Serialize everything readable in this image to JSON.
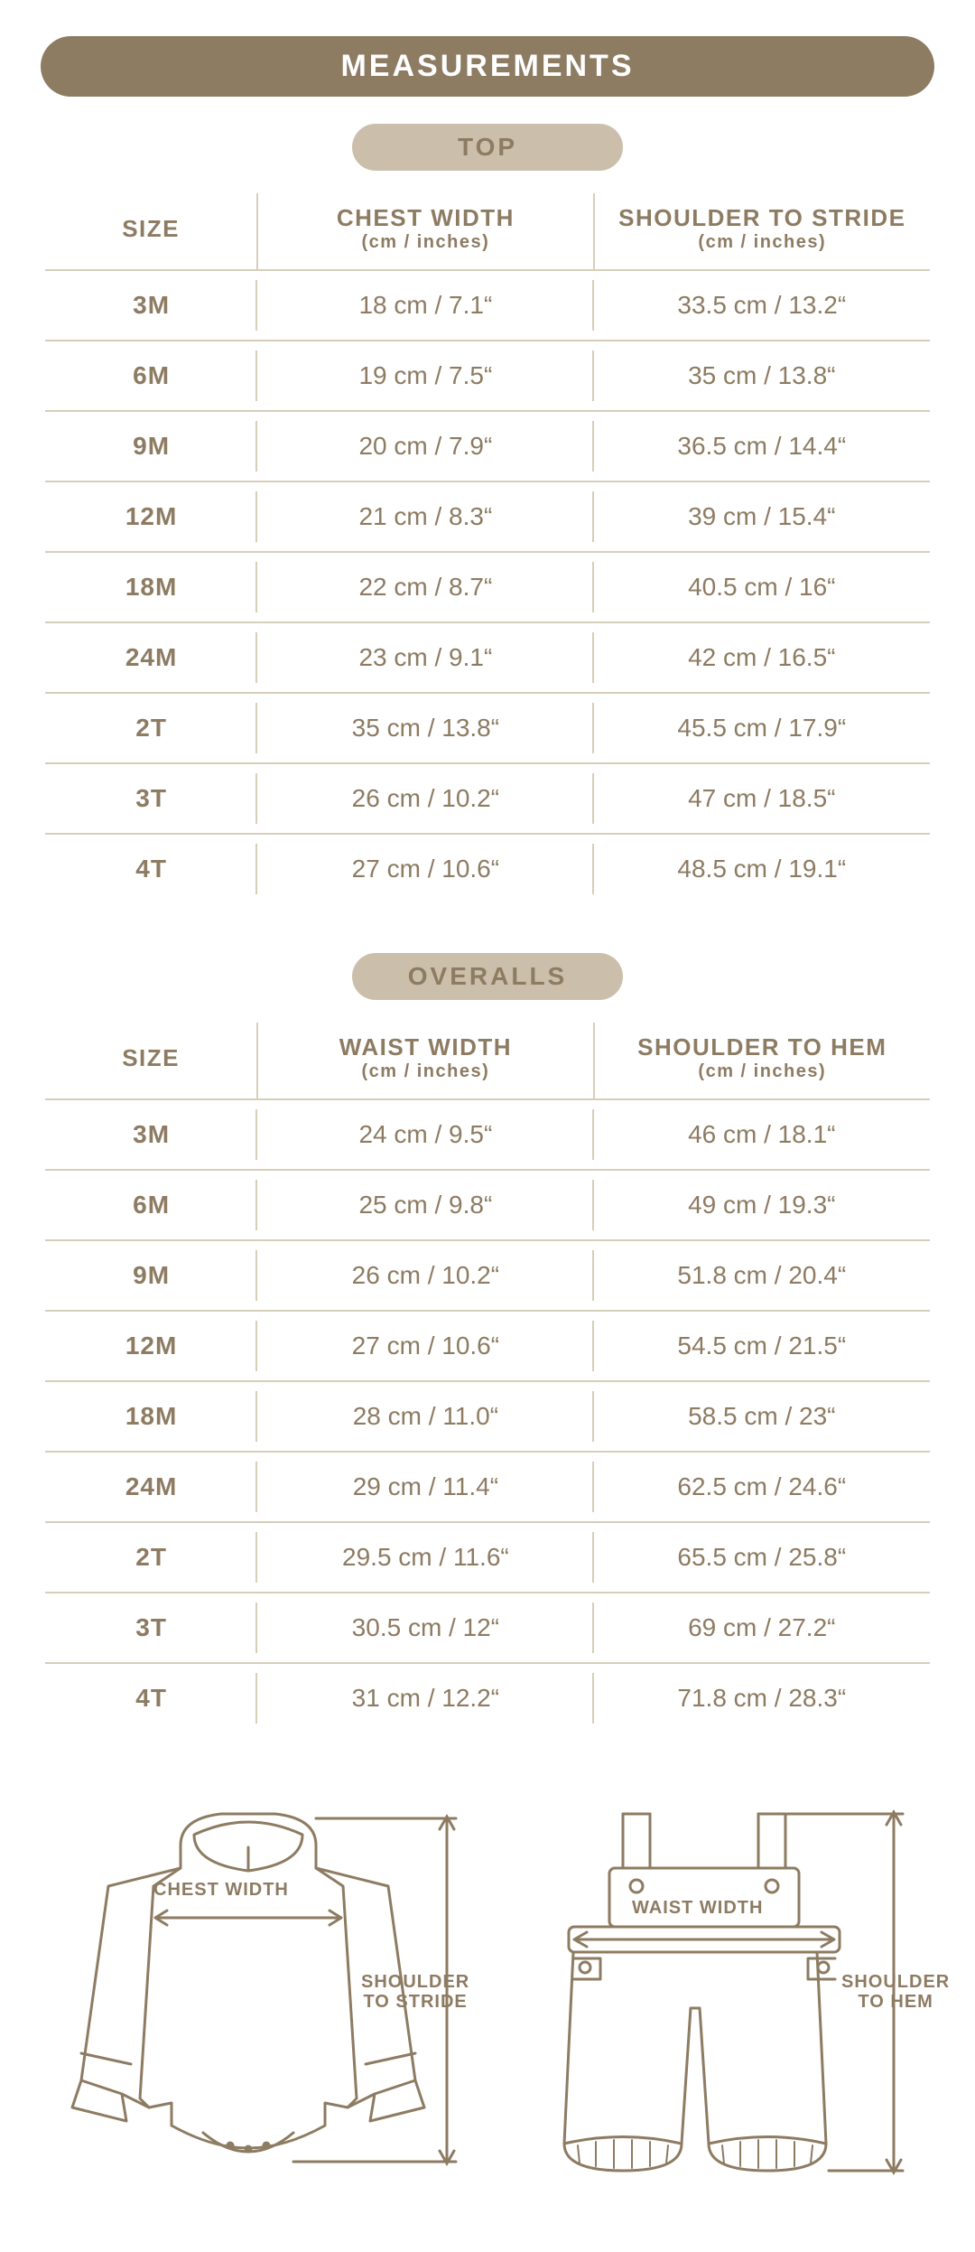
{
  "colors": {
    "brand": "#8d7b62",
    "pill_light": "#cbbfab",
    "line": "#d7ceb9",
    "text": "#8d7b62",
    "bg": "#ffffff"
  },
  "main_title": "MEASUREMENTS",
  "tables": [
    {
      "title": "TOP",
      "headers": {
        "size": "SIZE",
        "col_a": "CHEST WIDTH",
        "col_a_sub": "(cm / inches)",
        "col_b": "SHOULDER TO STRIDE",
        "col_b_sub": "(cm / inches)"
      },
      "rows": [
        {
          "size": "3M",
          "a": "18 cm / 7.1“",
          "b": "33.5 cm / 13.2“"
        },
        {
          "size": "6M",
          "a": "19 cm / 7.5“",
          "b": "35 cm / 13.8“"
        },
        {
          "size": "9M",
          "a": "20 cm / 7.9“",
          "b": "36.5 cm / 14.4“"
        },
        {
          "size": "12M",
          "a": "21 cm / 8.3“",
          "b": "39 cm / 15.4“"
        },
        {
          "size": "18M",
          "a": "22 cm / 8.7“",
          "b": "40.5 cm / 16“"
        },
        {
          "size": "24M",
          "a": "23 cm / 9.1“",
          "b": "42 cm / 16.5“"
        },
        {
          "size": "2T",
          "a": "35 cm / 13.8“",
          "b": "45.5 cm / 17.9“"
        },
        {
          "size": "3T",
          "a": "26 cm / 10.2“",
          "b": "47 cm / 18.5“"
        },
        {
          "size": "4T",
          "a": "27 cm / 10.6“",
          "b": "48.5 cm / 19.1“"
        }
      ]
    },
    {
      "title": "OVERALLS",
      "headers": {
        "size": "SIZE",
        "col_a": "WAIST WIDTH",
        "col_a_sub": "(cm / inches)",
        "col_b": "SHOULDER TO HEM",
        "col_b_sub": "(cm / inches)"
      },
      "rows": [
        {
          "size": "3M",
          "a": "24 cm / 9.5“",
          "b": "46 cm / 18.1“"
        },
        {
          "size": "6M",
          "a": "25 cm / 9.8“",
          "b": "49 cm / 19.3“"
        },
        {
          "size": "9M",
          "a": "26 cm / 10.2“",
          "b": "51.8 cm / 20.4“"
        },
        {
          "size": "12M",
          "a": "27 cm / 10.6“",
          "b": "54.5 cm / 21.5“"
        },
        {
          "size": "18M",
          "a": "28 cm / 11.0“",
          "b": "58.5 cm / 23“"
        },
        {
          "size": "24M",
          "a": "29 cm / 11.4“",
          "b": "62.5 cm / 24.6“"
        },
        {
          "size": "2T",
          "a": "29.5 cm / 11.6“",
          "b": "65.5 cm / 25.8“"
        },
        {
          "size": "3T",
          "a": "30.5 cm / 12“",
          "b": "69 cm / 27.2“"
        },
        {
          "size": "4T",
          "a": "31 cm / 12.2“",
          "b": "71.8 cm / 28.3“"
        }
      ]
    }
  ],
  "diagrams": {
    "top": {
      "label_chest": "CHEST WIDTH",
      "label_shoulder": "SHOULDER\nTO STRIDE"
    },
    "overalls": {
      "label_waist": "WAIST WIDTH",
      "label_shoulder": "SHOULDER\nTO HEM"
    }
  }
}
